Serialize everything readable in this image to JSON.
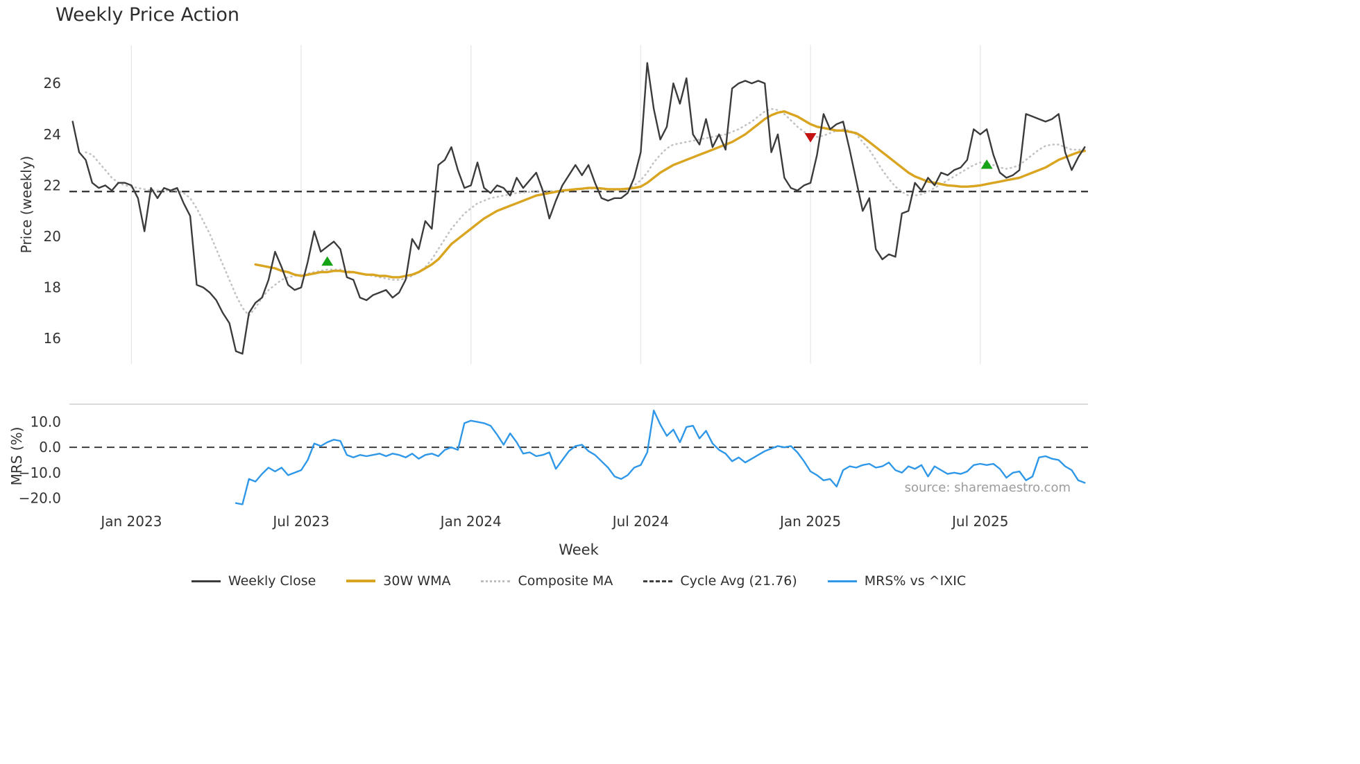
{
  "source_note": "source: sharemaestro.com",
  "chart_data": {
    "type": "line",
    "title": "Weekly Price Action",
    "xlabel": "Week",
    "n_weeks": 156,
    "x_ticks": [
      {
        "week": 9,
        "label": "Jan 2023"
      },
      {
        "week": 35,
        "label": "Jul 2023"
      },
      {
        "week": 61,
        "label": "Jan 2024"
      },
      {
        "week": 87,
        "label": "Jul 2024"
      },
      {
        "week": 113,
        "label": "Jan 2025"
      },
      {
        "week": 139,
        "label": "Jul 2025"
      }
    ],
    "panels": [
      {
        "ylabel": "Price (weekly)",
        "ylim": [
          15,
          27.5
        ],
        "yticks": [
          {
            "v": 16,
            "label": "16"
          },
          {
            "v": 18,
            "label": "18"
          },
          {
            "v": 20,
            "label": "20"
          },
          {
            "v": 22,
            "label": "22"
          },
          {
            "v": 24,
            "label": "24"
          },
          {
            "v": 26,
            "label": "26"
          }
        ],
        "reference_lines": [
          {
            "name": "cycle-avg",
            "value": 21.76,
            "style": "dashed",
            "color": "#2f2f2f"
          }
        ],
        "series": [
          {
            "name": "Weekly Close",
            "color": "#3b3b3b",
            "style": "solid",
            "width": 2.4,
            "values": [
              24.5,
              23.3,
              23.0,
              22.1,
              21.9,
              22.0,
              21.8,
              22.1,
              22.1,
              22.0,
              21.5,
              20.2,
              21.9,
              21.5,
              21.9,
              21.8,
              21.9,
              21.3,
              20.8,
              18.1,
              18.0,
              17.8,
              17.5,
              17.0,
              16.6,
              15.5,
              15.4,
              17.0,
              17.4,
              17.6,
              18.3,
              19.4,
              18.8,
              18.1,
              17.9,
              18.0,
              19.0,
              20.2,
              19.4,
              19.6,
              19.8,
              19.5,
              18.4,
              18.3,
              17.6,
              17.5,
              17.7,
              17.8,
              17.9,
              17.6,
              17.8,
              18.3,
              19.9,
              19.5,
              20.6,
              20.3,
              22.8,
              23.0,
              23.5,
              22.6,
              21.9,
              22.0,
              22.9,
              21.9,
              21.7,
              22.0,
              21.9,
              21.6,
              22.3,
              21.9,
              22.2,
              22.5,
              21.8,
              20.7,
              21.4,
              22.0,
              22.4,
              22.8,
              22.4,
              22.8,
              22.1,
              21.5,
              21.4,
              21.5,
              21.5,
              21.7,
              22.3,
              23.3,
              26.8,
              25.0,
              23.8,
              24.3,
              26.0,
              25.2,
              26.2,
              24.0,
              23.6,
              24.6,
              23.5,
              24.0,
              23.4,
              25.8,
              26.0,
              26.1,
              26.0,
              26.1,
              26.0,
              23.3,
              24.0,
              22.3,
              21.9,
              21.8,
              22.0,
              22.1,
              23.2,
              24.8,
              24.2,
              24.4,
              24.5,
              23.4,
              22.2,
              21.0,
              21.5,
              19.5,
              19.1,
              19.3,
              19.2,
              20.9,
              21.0,
              22.1,
              21.8,
              22.3,
              22.0,
              22.5,
              22.4,
              22.6,
              22.7,
              23.0,
              24.2,
              24.0,
              24.2,
              23.2,
              22.5,
              22.3,
              22.4,
              22.6,
              24.8,
              24.7,
              24.6,
              24.5,
              24.6,
              24.8,
              23.3,
              22.6,
              23.1,
              23.5
            ]
          },
          {
            "name": "30W WMA",
            "color": "#d9a521",
            "style": "solid",
            "width": 3.4,
            "values": [
              null,
              null,
              null,
              null,
              null,
              null,
              null,
              null,
              null,
              null,
              null,
              null,
              null,
              null,
              null,
              null,
              null,
              null,
              null,
              null,
              null,
              null,
              null,
              null,
              null,
              null,
              null,
              null,
              18.9,
              18.85,
              18.8,
              18.75,
              18.65,
              18.6,
              18.5,
              18.45,
              18.5,
              18.55,
              18.6,
              18.6,
              18.65,
              18.65,
              18.6,
              18.6,
              18.55,
              18.5,
              18.5,
              18.45,
              18.45,
              18.4,
              18.4,
              18.45,
              18.5,
              18.6,
              18.75,
              18.9,
              19.1,
              19.4,
              19.7,
              19.9,
              20.1,
              20.3,
              20.5,
              20.7,
              20.85,
              21.0,
              21.1,
              21.2,
              21.3,
              21.4,
              21.5,
              21.6,
              21.65,
              21.7,
              21.75,
              21.8,
              21.82,
              21.85,
              21.87,
              21.9,
              21.9,
              21.88,
              21.85,
              21.85,
              21.85,
              21.87,
              21.9,
              21.95,
              22.1,
              22.3,
              22.5,
              22.65,
              22.8,
              22.9,
              23.0,
              23.1,
              23.2,
              23.3,
              23.4,
              23.5,
              23.6,
              23.7,
              23.85,
              24.0,
              24.2,
              24.4,
              24.6,
              24.75,
              24.85,
              24.9,
              24.8,
              24.7,
              24.55,
              24.4,
              24.3,
              24.25,
              24.2,
              24.15,
              24.15,
              24.1,
              24.05,
              23.9,
              23.7,
              23.5,
              23.3,
              23.1,
              22.9,
              22.7,
              22.5,
              22.35,
              22.25,
              22.15,
              22.1,
              22.05,
              22.0,
              21.98,
              21.95,
              21.95,
              21.97,
              22.0,
              22.05,
              22.1,
              22.15,
              22.2,
              22.25,
              22.3,
              22.4,
              22.5,
              22.6,
              22.7,
              22.85,
              23.0,
              23.1,
              23.2,
              23.3,
              23.35
            ]
          },
          {
            "name": "Composite MA",
            "color": "#c2c2c2",
            "style": "dotted",
            "width": 2.6,
            "values": [
              null,
              null,
              23.3,
              23.2,
              22.9,
              22.6,
              22.3,
              22.1,
              22.0,
              21.95,
              21.9,
              21.85,
              21.8,
              21.8,
              21.8,
              21.8,
              21.8,
              21.7,
              21.5,
              21.1,
              20.6,
              20.1,
              19.5,
              18.9,
              18.3,
              17.7,
              17.2,
              16.9,
              17.2,
              17.6,
              17.9,
              18.1,
              18.3,
              18.4,
              18.45,
              18.5,
              18.55,
              18.6,
              18.65,
              18.7,
              18.7,
              18.7,
              18.65,
              18.6,
              18.55,
              18.5,
              18.45,
              18.4,
              18.35,
              18.3,
              18.3,
              18.35,
              18.45,
              18.6,
              18.8,
              19.1,
              19.5,
              19.9,
              20.3,
              20.6,
              20.9,
              21.1,
              21.3,
              21.4,
              21.5,
              21.55,
              21.6,
              21.65,
              21.7,
              21.72,
              21.75,
              21.78,
              21.8,
              21.78,
              21.78,
              21.8,
              21.82,
              21.85,
              21.85,
              21.87,
              21.88,
              21.85,
              21.82,
              21.8,
              21.82,
              21.88,
              22.0,
              22.2,
              22.5,
              22.9,
              23.2,
              23.45,
              23.6,
              23.65,
              23.7,
              23.75,
              23.8,
              23.85,
              23.9,
              23.95,
              24.0,
              24.1,
              24.2,
              24.35,
              24.5,
              24.7,
              24.9,
              25.0,
              24.95,
              24.8,
              24.55,
              24.3,
              24.1,
              23.95,
              23.9,
              23.95,
              24.05,
              24.15,
              24.2,
              24.15,
              24.0,
              23.7,
              23.4,
              23.0,
              22.6,
              22.25,
              21.95,
              21.75,
              21.6,
              21.6,
              21.65,
              21.75,
              21.9,
              22.05,
              22.2,
              22.35,
              22.5,
              22.65,
              22.8,
              22.9,
              22.85,
              22.8,
              22.7,
              22.65,
              22.7,
              22.8,
              23.0,
              23.2,
              23.4,
              23.55,
              23.6,
              23.6,
              23.5,
              23.4,
              23.4,
              23.4
            ]
          }
        ],
        "markers": [
          {
            "type": "buy-signal",
            "shape": "triangle-up",
            "color": "#17a317",
            "week": 39,
            "price": 19.0
          },
          {
            "type": "sell-signal",
            "shape": "triangle-down",
            "color": "#c51212",
            "week": 113,
            "price": 23.9
          },
          {
            "type": "buy-signal",
            "shape": "triangle-up",
            "color": "#17a317",
            "week": 140,
            "price": 22.8
          }
        ]
      },
      {
        "ylabel": "MRS (%)",
        "ylim": [
          -24,
          17
        ],
        "yticks": [
          {
            "v": 10,
            "label": "10.0"
          },
          {
            "v": 0,
            "label": "0.0"
          },
          {
            "v": -10,
            "label": "−10.0"
          },
          {
            "v": -20,
            "label": "−20.0"
          }
        ],
        "reference_lines": [
          {
            "name": "zero",
            "value": 0,
            "style": "dashed",
            "color": "#2f2f2f"
          }
        ],
        "series": [
          {
            "name": "MRS% vs ^IXIC",
            "color": "#2e97e8",
            "style": "solid",
            "width": 2.4,
            "values": [
              null,
              null,
              null,
              null,
              null,
              null,
              null,
              null,
              null,
              null,
              null,
              null,
              null,
              null,
              null,
              null,
              null,
              null,
              null,
              null,
              null,
              null,
              null,
              null,
              null,
              -22.0,
              -22.5,
              -12.5,
              -13.5,
              -10.5,
              -8.0,
              -9.5,
              -8.0,
              -11.0,
              -10.0,
              -9.0,
              -5.0,
              1.5,
              0.5,
              2.0,
              3.0,
              2.5,
              -3.0,
              -4.0,
              -3.0,
              -3.5,
              -3.0,
              -2.5,
              -3.5,
              -2.5,
              -3.0,
              -4.0,
              -2.5,
              -4.5,
              -3.0,
              -2.5,
              -3.5,
              -1.0,
              0.0,
              -1.0,
              9.5,
              10.5,
              10.0,
              9.5,
              8.5,
              5.0,
              1.0,
              5.5,
              2.0,
              -2.5,
              -2.0,
              -3.5,
              -3.0,
              -2.0,
              -8.5,
              -5.0,
              -1.5,
              0.5,
              1.0,
              -1.5,
              -3.0,
              -5.5,
              -8.0,
              -11.5,
              -12.5,
              -11.0,
              -8.0,
              -7.0,
              -2.0,
              14.5,
              9.0,
              4.5,
              7.0,
              2.0,
              8.0,
              8.5,
              3.5,
              6.5,
              1.5,
              -1.0,
              -2.5,
              -5.5,
              -4.0,
              -6.0,
              -4.5,
              -3.0,
              -1.5,
              -0.5,
              0.5,
              0.0,
              0.5,
              -2.0,
              -5.5,
              -9.5,
              -11.0,
              -13.0,
              -12.5,
              -15.5,
              -9.0,
              -7.5,
              -8.0,
              -7.0,
              -6.5,
              -8.0,
              -7.5,
              -6.0,
              -9.0,
              -10.0,
              -7.5,
              -8.5,
              -7.0,
              -11.5,
              -7.5,
              -9.0,
              -10.5,
              -10.0,
              -10.5,
              -9.5,
              -7.0,
              -6.5,
              -7.0,
              -6.5,
              -8.5,
              -12.0,
              -10.0,
              -9.5,
              -13.0,
              -11.5,
              -4.0,
              -3.5,
              -4.5,
              -5.0,
              -7.5,
              -9.0,
              -13.0,
              -14.0
            ]
          }
        ]
      }
    ]
  },
  "legend": {
    "items": [
      {
        "label": "Weekly Close"
      },
      {
        "label": "30W WMA"
      },
      {
        "label": "Composite MA"
      },
      {
        "label": "Cycle Avg (21.76)"
      },
      {
        "label": "MRS% vs ^IXIC"
      }
    ]
  }
}
